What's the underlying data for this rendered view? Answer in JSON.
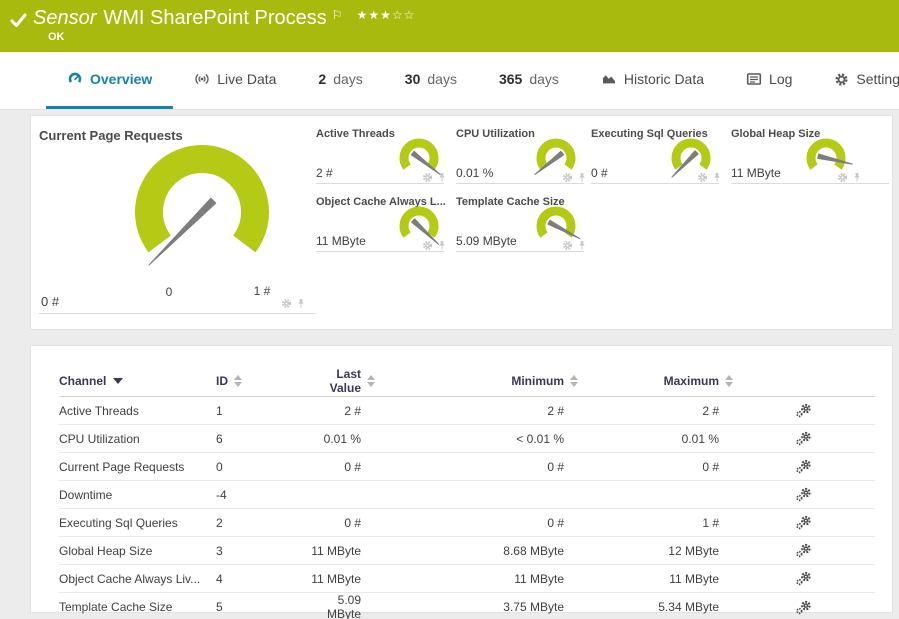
{
  "header": {
    "kind_label": "Sensor",
    "title": "WMI SharePoint Process",
    "status": "OK",
    "stars": "★★★☆☆",
    "flag_icon": "flag-icon",
    "bg_color": "#a9ba0e"
  },
  "tabs": [
    {
      "label": "Overview",
      "icon": "gauge",
      "active": true
    },
    {
      "label": "Live Data",
      "icon": "live",
      "active": false
    },
    {
      "number": "2",
      "label": "days",
      "active": false
    },
    {
      "number": "30",
      "label": "days",
      "active": false
    },
    {
      "number": "365",
      "label": "days",
      "active": false
    },
    {
      "label": "Historic Data",
      "icon": "chart",
      "active": false
    },
    {
      "label": "Log",
      "icon": "log",
      "active": false
    },
    {
      "label": "Settings",
      "icon": "gear",
      "active": false
    }
  ],
  "gauges": {
    "gauge_color": "#b4ca15",
    "needle_color": "#7d7d7d",
    "main": {
      "title": "Current Page Requests",
      "value": "0 #",
      "min_label": "0",
      "max_label": "1 #",
      "needle_angle": -135
    },
    "small": [
      {
        "title": "Active Threads",
        "value": "2 #",
        "needle_angle": 128
      },
      {
        "title": "CPU Utilization",
        "value": "0.01 %",
        "needle_angle": -128
      },
      {
        "title": "Executing Sql Queries",
        "value": "0 #",
        "needle_angle": -135
      },
      {
        "title": "Global Heap Size",
        "value": "11 MByte",
        "needle_angle": 103
      },
      {
        "title": "Object Cache Always L...",
        "value": "11 MByte",
        "needle_angle": 133
      },
      {
        "title": "Template Cache Size",
        "value": "5.09 MByte",
        "needle_angle": 118
      }
    ]
  },
  "table": {
    "columns": {
      "channel": "Channel",
      "id": "ID",
      "last": "Last Value",
      "min": "Minimum",
      "max": "Maximum"
    },
    "sorted_by": "Channel",
    "rows": [
      {
        "channel": "Active Threads",
        "id": "1",
        "last": "2 #",
        "min": "2 #",
        "max": "2 #"
      },
      {
        "channel": "CPU Utilization",
        "id": "6",
        "last": "0.01 %",
        "min": "< 0.01 %",
        "max": "0.01 %"
      },
      {
        "channel": "Current Page Requests",
        "id": "0",
        "last": "0 #",
        "min": "0 #",
        "max": "0 #"
      },
      {
        "channel": "Downtime",
        "id": "-4",
        "last": "",
        "min": "",
        "max": ""
      },
      {
        "channel": "Executing Sql Queries",
        "id": "2",
        "last": "0 #",
        "min": "0 #",
        "max": "1 #"
      },
      {
        "channel": "Global Heap Size",
        "id": "3",
        "last": "11 MByte",
        "min": "8.68 MByte",
        "max": "12 MByte"
      },
      {
        "channel": "Object Cache Always Liv...",
        "id": "4",
        "last": "11 MByte",
        "min": "11 MByte",
        "max": "11 MByte"
      },
      {
        "channel": "Template Cache Size",
        "id": "5",
        "last": "5.09 MByte",
        "min": "3.75 MByte",
        "max": "5.34 MByte"
      }
    ]
  }
}
